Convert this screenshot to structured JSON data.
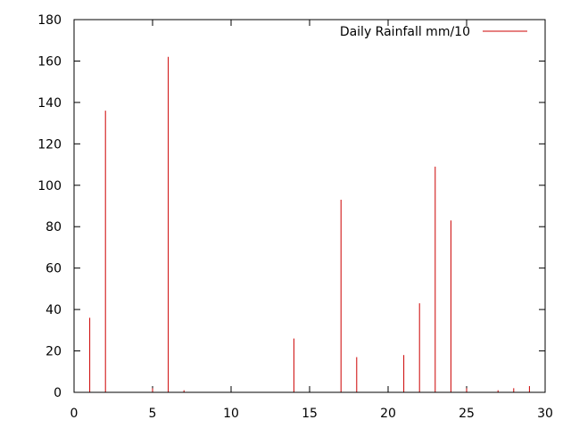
{
  "chart_data": {
    "type": "bar",
    "series": [
      {
        "name": "Daily Rainfall mm/10",
        "color": "#cc0000",
        "x": [
          1,
          2,
          5,
          6,
          7,
          14,
          17,
          18,
          21,
          22,
          23,
          24,
          25,
          27,
          28,
          29
        ],
        "values": [
          36,
          136,
          2,
          162,
          1,
          26,
          93,
          17,
          18,
          43,
          109,
          83,
          2,
          1,
          2,
          3
        ]
      }
    ],
    "xlim": [
      0,
      30
    ],
    "ylim": [
      0,
      180
    ],
    "xticks": [
      0,
      5,
      10,
      15,
      20,
      25,
      30
    ],
    "yticks": [
      0,
      20,
      40,
      60,
      80,
      100,
      120,
      140,
      160,
      180
    ],
    "grid": false,
    "legend": {
      "position": "top-right",
      "label": "Daily Rainfall mm/10"
    }
  }
}
